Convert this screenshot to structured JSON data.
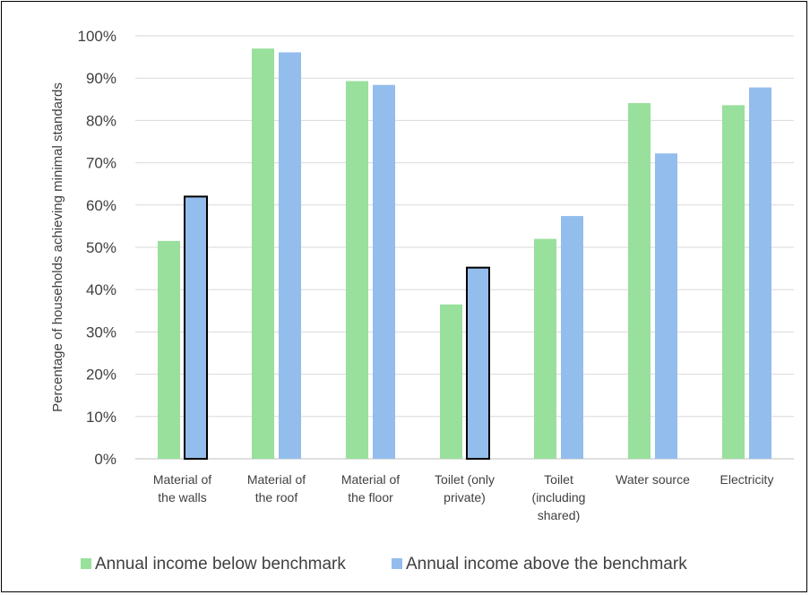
{
  "chart_data": {
    "type": "bar",
    "title": "",
    "xlabel": "",
    "ylabel": "Percentage of households achieving minimal standards",
    "ylim": [
      0,
      100
    ],
    "yticks": [
      0,
      10,
      20,
      30,
      40,
      50,
      60,
      70,
      80,
      90,
      100
    ],
    "ytick_labels": [
      "0%",
      "10%",
      "20%",
      "30%",
      "40%",
      "50%",
      "60%",
      "70%",
      "80%",
      "90%",
      "100%"
    ],
    "grid": true,
    "legend_position": "bottom",
    "categories": [
      [
        "Material of",
        "the walls"
      ],
      [
        "Material of",
        "the roof"
      ],
      [
        "Material of",
        "the floor"
      ],
      [
        "Toilet (only",
        "private)"
      ],
      [
        "Toilet",
        "(including",
        "shared)"
      ],
      [
        "Water source"
      ],
      [
        "Electricity"
      ]
    ],
    "series": [
      {
        "name": "Annual income below benchmark",
        "color": "#98e09c",
        "values": [
          51.5,
          97,
          89.3,
          36.5,
          52,
          84.1,
          83.6
        ]
      },
      {
        "name": "Annual income above the benchmark",
        "color": "#93bdec",
        "values": [
          62,
          96.1,
          88.4,
          45.2,
          57.4,
          72.2,
          87.8
        ],
        "outlined": [
          true,
          false,
          false,
          true,
          false,
          false,
          false
        ]
      }
    ]
  }
}
